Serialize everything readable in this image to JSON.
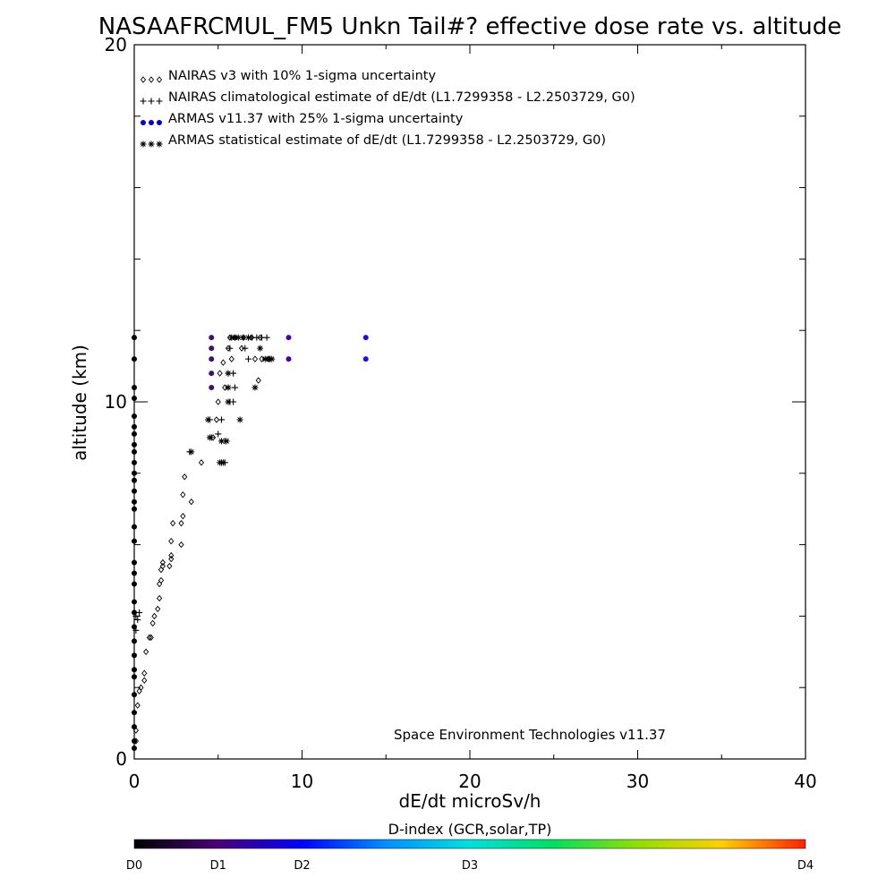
{
  "chart_data": {
    "type": "scatter",
    "title": "NASAAFRCMUL_FM5 Unkn Tail#? effective dose rate vs. altitude",
    "xlabel": "dE/dt microSv/h",
    "ylabel": "altitude (km)",
    "xlim": [
      0,
      40
    ],
    "ylim": [
      0,
      20
    ],
    "x_ticks": [
      "0",
      "10",
      "20",
      "30",
      "40"
    ],
    "y_ticks": [
      "0",
      "10",
      "20"
    ],
    "grid": false,
    "legend_position": "top-left",
    "annotation": "Space Environment Technologies v11.37",
    "series": [
      {
        "name": "NAIRAS v3 with 10% 1-sigma uncertainty",
        "marker": "diamond",
        "color": "#000000",
        "points": [
          [
            0.1,
            0.5
          ],
          [
            0.1,
            0.8
          ],
          [
            0.2,
            1.5
          ],
          [
            0.3,
            1.9
          ],
          [
            0.4,
            2.0
          ],
          [
            0.6,
            2.2
          ],
          [
            0.6,
            2.4
          ],
          [
            0.7,
            3.0
          ],
          [
            0.9,
            3.4
          ],
          [
            1.0,
            3.4
          ],
          [
            1.1,
            3.8
          ],
          [
            1.2,
            4.0
          ],
          [
            1.4,
            4.2
          ],
          [
            1.5,
            4.5
          ],
          [
            1.5,
            4.9
          ],
          [
            1.6,
            5.0
          ],
          [
            1.6,
            5.3
          ],
          [
            1.7,
            5.4
          ],
          [
            1.7,
            5.5
          ],
          [
            2.1,
            5.4
          ],
          [
            2.2,
            5.6
          ],
          [
            2.2,
            5.7
          ],
          [
            2.2,
            6.1
          ],
          [
            2.8,
            6.0
          ],
          [
            2.3,
            6.6
          ],
          [
            2.8,
            6.6
          ],
          [
            2.9,
            6.8
          ],
          [
            3.4,
            7.2
          ],
          [
            2.9,
            7.4
          ],
          [
            3.0,
            7.9
          ],
          [
            4.0,
            8.3
          ],
          [
            4.7,
            9.0
          ],
          [
            4.9,
            9.5
          ],
          [
            5.0,
            10.0
          ],
          [
            5.4,
            10.4
          ],
          [
            5.1,
            10.8
          ],
          [
            5.3,
            11.1
          ],
          [
            5.8,
            11.2
          ],
          [
            5.6,
            11.5
          ],
          [
            5.7,
            11.8
          ],
          [
            6.4,
            11.5
          ],
          [
            7.4,
            10.6
          ],
          [
            7.2,
            11.2
          ],
          [
            7.6,
            11.2
          ],
          [
            8.0,
            11.2
          ],
          [
            6.0,
            11.8
          ],
          [
            6.5,
            11.8
          ],
          [
            7.0,
            11.8
          ],
          [
            7.5,
            11.8
          ]
        ]
      },
      {
        "name": "NAIRAS climatological estimate of dE/dt (L1.7299358 - L2.2503729, G0)",
        "marker": "plus",
        "color": "#000000",
        "points": [
          [
            0.1,
            3.6
          ],
          [
            0.1,
            4.0
          ],
          [
            0.2,
            3.9
          ],
          [
            0.3,
            4.1
          ],
          [
            3.3,
            8.6
          ],
          [
            4.5,
            9.5
          ],
          [
            5.2,
            9.5
          ],
          [
            4.6,
            9.0
          ],
          [
            5.0,
            9.1
          ],
          [
            5.2,
            8.3
          ],
          [
            5.4,
            8.3
          ],
          [
            5.4,
            8.9
          ],
          [
            5.7,
            10.0
          ],
          [
            5.9,
            10.0
          ],
          [
            5.6,
            10.4
          ],
          [
            6.0,
            10.4
          ],
          [
            5.6,
            10.8
          ],
          [
            5.9,
            10.8
          ],
          [
            5.7,
            11.5
          ],
          [
            6.6,
            11.5
          ],
          [
            6.8,
            11.2
          ],
          [
            7.0,
            11.8
          ],
          [
            7.3,
            11.8
          ],
          [
            7.6,
            11.8
          ],
          [
            7.9,
            11.8
          ],
          [
            8.1,
            11.2
          ]
        ]
      },
      {
        "name": "ARMAS v11.37 with 25% 1-sigma uncertainty",
        "marker": "filled-circle",
        "color": "#0000cc",
        "points": [
          [
            0.0,
            0.3
          ],
          [
            0.0,
            0.5
          ],
          [
            0.0,
            0.9
          ],
          [
            0.0,
            1.3
          ],
          [
            0.0,
            1.8
          ],
          [
            0.0,
            2.3
          ],
          [
            0.0,
            2.5
          ],
          [
            0.0,
            2.9
          ],
          [
            0.0,
            3.3
          ],
          [
            0.0,
            3.7
          ],
          [
            0.0,
            4.1
          ],
          [
            0.0,
            4.4
          ],
          [
            0.0,
            4.9
          ],
          [
            0.0,
            5.2
          ],
          [
            0.0,
            5.5
          ],
          [
            0.0,
            6.1
          ],
          [
            0.0,
            6.5
          ],
          [
            0.0,
            7.0
          ],
          [
            0.0,
            7.2
          ],
          [
            0.0,
            7.5
          ],
          [
            0.0,
            7.8
          ],
          [
            0.0,
            8.0
          ],
          [
            0.0,
            8.3
          ],
          [
            0.0,
            8.6
          ],
          [
            0.0,
            8.8
          ],
          [
            0.0,
            9.1
          ],
          [
            0.0,
            9.3
          ],
          [
            0.0,
            9.6
          ],
          [
            0.0,
            10.1
          ],
          [
            0.0,
            10.4
          ],
          [
            0.0,
            11.2
          ],
          [
            0.0,
            11.8
          ],
          [
            4.6,
            10.4
          ],
          [
            4.6,
            10.8
          ],
          [
            4.6,
            11.2
          ],
          [
            4.6,
            11.5
          ],
          [
            4.6,
            11.8
          ],
          [
            9.2,
            11.8
          ],
          [
            9.2,
            11.2
          ],
          [
            13.8,
            11.8
          ],
          [
            13.8,
            11.2
          ]
        ]
      },
      {
        "name": "ARMAS statistical estimate of dE/dt (L1.7299358 - L2.2503729, G0)",
        "marker": "asterisk",
        "color": "#000000",
        "points": [
          [
            3.4,
            8.6
          ],
          [
            4.4,
            9.5
          ],
          [
            4.5,
            9.0
          ],
          [
            5.1,
            8.3
          ],
          [
            5.3,
            8.3
          ],
          [
            5.2,
            8.9
          ],
          [
            5.5,
            8.9
          ],
          [
            5.6,
            10.0
          ],
          [
            5.6,
            10.4
          ],
          [
            5.6,
            10.8
          ],
          [
            6.3,
            9.5
          ],
          [
            7.2,
            10.4
          ],
          [
            5.8,
            11.8
          ],
          [
            6.0,
            11.8
          ],
          [
            6.2,
            11.8
          ],
          [
            6.5,
            11.8
          ],
          [
            6.8,
            11.8
          ],
          [
            7.5,
            11.5
          ],
          [
            7.8,
            11.2
          ],
          [
            8.0,
            11.2
          ],
          [
            8.2,
            11.2
          ]
        ]
      }
    ],
    "colorbar": {
      "title": "D-index (GCR,solar,TP)",
      "labels": [
        "D0",
        "D1",
        "D2",
        "D3",
        "D4"
      ],
      "label_fractions": [
        0.0,
        0.125,
        0.25,
        0.5,
        1.0
      ],
      "stops": [
        {
          "offset": 0.0,
          "color": "#000000"
        },
        {
          "offset": 0.125,
          "color": "#4b0078"
        },
        {
          "offset": 0.25,
          "color": "#0000ff"
        },
        {
          "offset": 0.375,
          "color": "#0090ff"
        },
        {
          "offset": 0.5,
          "color": "#00e0e0"
        },
        {
          "offset": 0.625,
          "color": "#00e060"
        },
        {
          "offset": 0.75,
          "color": "#90e000"
        },
        {
          "offset": 0.875,
          "color": "#ffd000"
        },
        {
          "offset": 1.0,
          "color": "#ff2000"
        }
      ]
    }
  }
}
